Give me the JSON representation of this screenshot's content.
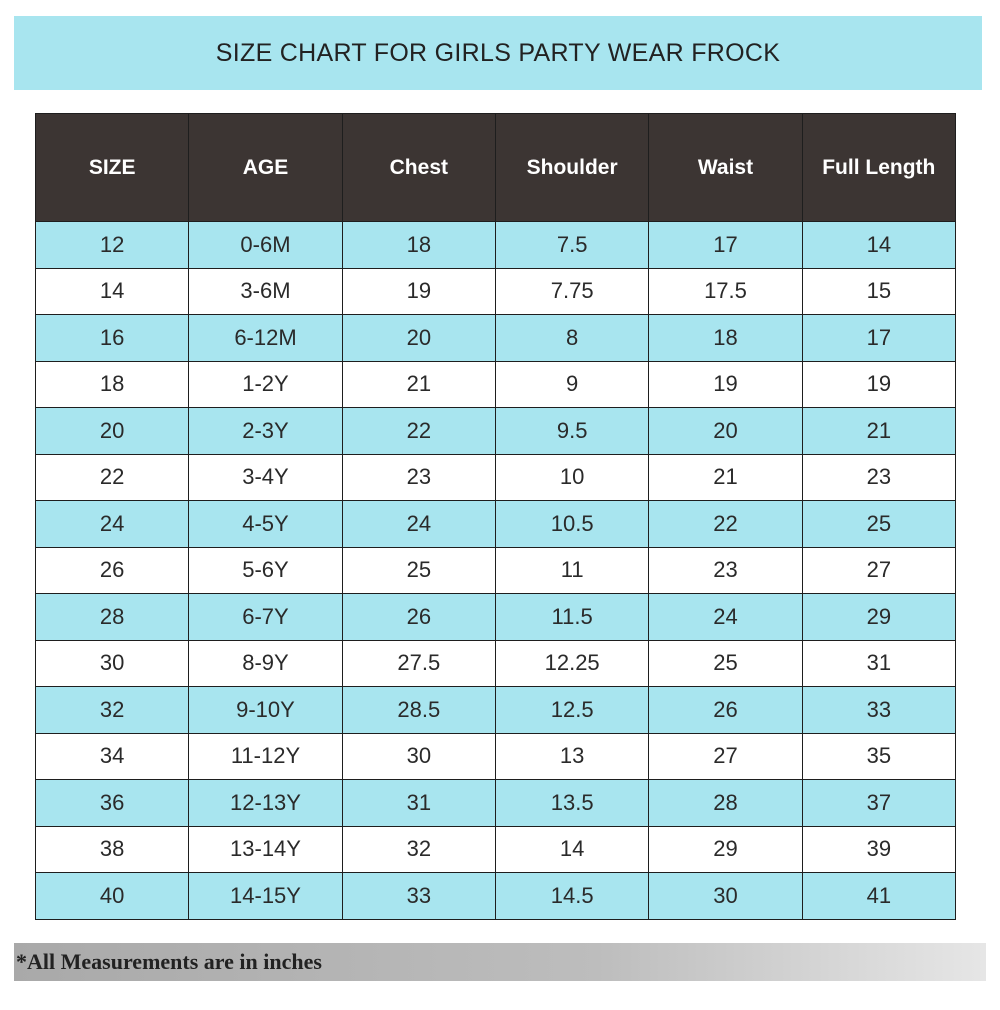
{
  "header": {
    "title": "SIZE CHART FOR GIRLS PARTY WEAR FROCK"
  },
  "table": {
    "columns": [
      "SIZE",
      "AGE",
      "Chest",
      "Shoulder",
      "Waist",
      "Full Length"
    ],
    "rows": [
      [
        "12",
        "0-6M",
        "18",
        "7.5",
        "17",
        "14"
      ],
      [
        "14",
        "3-6M",
        "19",
        "7.75",
        "17.5",
        "15"
      ],
      [
        "16",
        "6-12M",
        "20",
        "8",
        "18",
        "17"
      ],
      [
        "18",
        "1-2Y",
        "21",
        "9",
        "19",
        "19"
      ],
      [
        "20",
        "2-3Y",
        "22",
        "9.5",
        "20",
        "21"
      ],
      [
        "22",
        "3-4Y",
        "23",
        "10",
        "21",
        "23"
      ],
      [
        "24",
        "4-5Y",
        "24",
        "10.5",
        "22",
        "25"
      ],
      [
        "26",
        "5-6Y",
        "25",
        "11",
        "23",
        "27"
      ],
      [
        "28",
        "6-7Y",
        "26",
        "11.5",
        "24",
        "29"
      ],
      [
        "30",
        "8-9Y",
        "27.5",
        "12.25",
        "25",
        "31"
      ],
      [
        "32",
        "9-10Y",
        "28.5",
        "12.5",
        "26",
        "33"
      ],
      [
        "34",
        "11-12Y",
        "30",
        "13",
        "27",
        "35"
      ],
      [
        "36",
        "12-13Y",
        "31",
        "13.5",
        "28",
        "37"
      ],
      [
        "38",
        "13-14Y",
        "32",
        "14",
        "29",
        "39"
      ],
      [
        "40",
        "14-15Y",
        "33",
        "14.5",
        "30",
        "41"
      ]
    ]
  },
  "footnote": "*All Measurements are in inches"
}
